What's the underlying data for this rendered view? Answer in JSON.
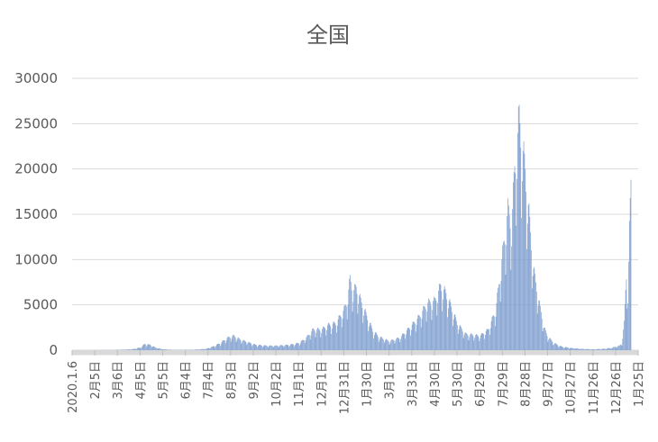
{
  "chart_data": {
    "type": "bar",
    "title": "全国",
    "xlabel": "",
    "ylabel": "",
    "ylim": [
      0,
      30000
    ],
    "yticks": [
      0,
      5000,
      10000,
      15000,
      20000,
      25000,
      30000
    ],
    "ytick_labels": [
      "0",
      "5000",
      "10000",
      "15000",
      "20000",
      "25000",
      "30000"
    ],
    "x_start": "2020-01-06",
    "x_end": "2022-01-25",
    "xtick_dates": [
      "2020-01-06",
      "2020-02-05",
      "2020-03-06",
      "2020-04-05",
      "2020-05-05",
      "2020-06-04",
      "2020-07-04",
      "2020-08-03",
      "2020-09-02",
      "2020-10-02",
      "2020-11-01",
      "2020-12-01",
      "2020-12-31",
      "2021-01-30",
      "2021-03-01",
      "2021-03-31",
      "2021-04-30",
      "2021-05-30",
      "2021-06-29",
      "2021-07-29",
      "2021-08-28",
      "2021-09-27",
      "2021-10-27",
      "2021-11-26",
      "2021-12-26",
      "2022-01-25"
    ],
    "xtick_labels": [
      "2020.1.6",
      "2月5日",
      "3月6日",
      "4月5日",
      "5月5日",
      "6月4日",
      "7月4日",
      "8月3日",
      "9月2日",
      "10月2日",
      "11月1日",
      "12月1日",
      "12月31日",
      "1月30日",
      "3月1日",
      "3月31日",
      "4月30日",
      "5月30日",
      "6月29日",
      "7月29日",
      "8月28日",
      "9月27日",
      "10月27日",
      "11月26日",
      "12月26日",
      "1月25日"
    ],
    "series_color": "#7f9fcf",
    "grid": true,
    "legend": "none",
    "series": [
      {
        "points": [
          [
            "2020-01-06",
            0
          ],
          [
            "2020-03-01",
            20
          ],
          [
            "2020-03-25",
            100
          ],
          [
            "2020-04-05",
            300
          ],
          [
            "2020-04-11",
            700
          ],
          [
            "2020-04-18",
            600
          ],
          [
            "2020-04-25",
            300
          ],
          [
            "2020-05-05",
            100
          ],
          [
            "2020-05-20",
            30
          ],
          [
            "2020-06-15",
            50
          ],
          [
            "2020-07-01",
            150
          ],
          [
            "2020-07-10",
            400
          ],
          [
            "2020-07-20",
            800
          ],
          [
            "2020-07-30",
            1400
          ],
          [
            "2020-08-07",
            1600
          ],
          [
            "2020-08-15",
            1200
          ],
          [
            "2020-08-25",
            900
          ],
          [
            "2020-09-05",
            600
          ],
          [
            "2020-09-20",
            500
          ],
          [
            "2020-10-02",
            500
          ],
          [
            "2020-10-20",
            600
          ],
          [
            "2020-11-01",
            800
          ],
          [
            "2020-11-10",
            1300
          ],
          [
            "2020-11-20",
            2300
          ],
          [
            "2020-12-01",
            2300
          ],
          [
            "2020-12-10",
            2800
          ],
          [
            "2020-12-20",
            3000
          ],
          [
            "2020-12-31",
            4500
          ],
          [
            "2021-01-04",
            5500
          ],
          [
            "2021-01-08",
            7900
          ],
          [
            "2021-01-12",
            6500
          ],
          [
            "2021-01-16",
            7000
          ],
          [
            "2021-01-22",
            5500
          ],
          [
            "2021-01-30",
            3800
          ],
          [
            "2021-02-07",
            2200
          ],
          [
            "2021-02-15",
            1500
          ],
          [
            "2021-03-01",
            1000
          ],
          [
            "2021-03-15",
            1400
          ],
          [
            "2021-03-31",
            2800
          ],
          [
            "2021-04-10",
            3800
          ],
          [
            "2021-04-20",
            5200
          ],
          [
            "2021-04-30",
            5500
          ],
          [
            "2021-05-08",
            7200
          ],
          [
            "2021-05-15",
            6300
          ],
          [
            "2021-05-22",
            4800
          ],
          [
            "2021-05-30",
            3000
          ],
          [
            "2021-06-10",
            1800
          ],
          [
            "2021-06-29",
            1600
          ],
          [
            "2021-07-10",
            2300
          ],
          [
            "2021-07-20",
            4500
          ],
          [
            "2021-07-29",
            10700
          ],
          [
            "2021-08-05",
            15500
          ],
          [
            "2021-08-10",
            14000
          ],
          [
            "2021-08-14",
            20300
          ],
          [
            "2021-08-20",
            25800
          ],
          [
            "2021-08-25",
            22000
          ],
          [
            "2021-08-28",
            20000
          ],
          [
            "2021-09-02",
            15000
          ],
          [
            "2021-09-08",
            9000
          ],
          [
            "2021-09-15",
            5500
          ],
          [
            "2021-09-22",
            2500
          ],
          [
            "2021-09-27",
            1500
          ],
          [
            "2021-10-05",
            800
          ],
          [
            "2021-10-15",
            400
          ],
          [
            "2021-10-27",
            250
          ],
          [
            "2021-11-10",
            150
          ],
          [
            "2021-11-26",
            100
          ],
          [
            "2021-12-10",
            150
          ],
          [
            "2021-12-20",
            250
          ],
          [
            "2021-12-26",
            400
          ],
          [
            "2021-12-31",
            500
          ],
          [
            "2022-01-03",
            800
          ],
          [
            "2022-01-06",
            3000
          ],
          [
            "2022-01-09",
            8500
          ],
          [
            "2022-01-11",
            6300
          ],
          [
            "2022-01-13",
            13200
          ],
          [
            "2022-01-15",
            18800
          ]
        ]
      }
    ]
  }
}
